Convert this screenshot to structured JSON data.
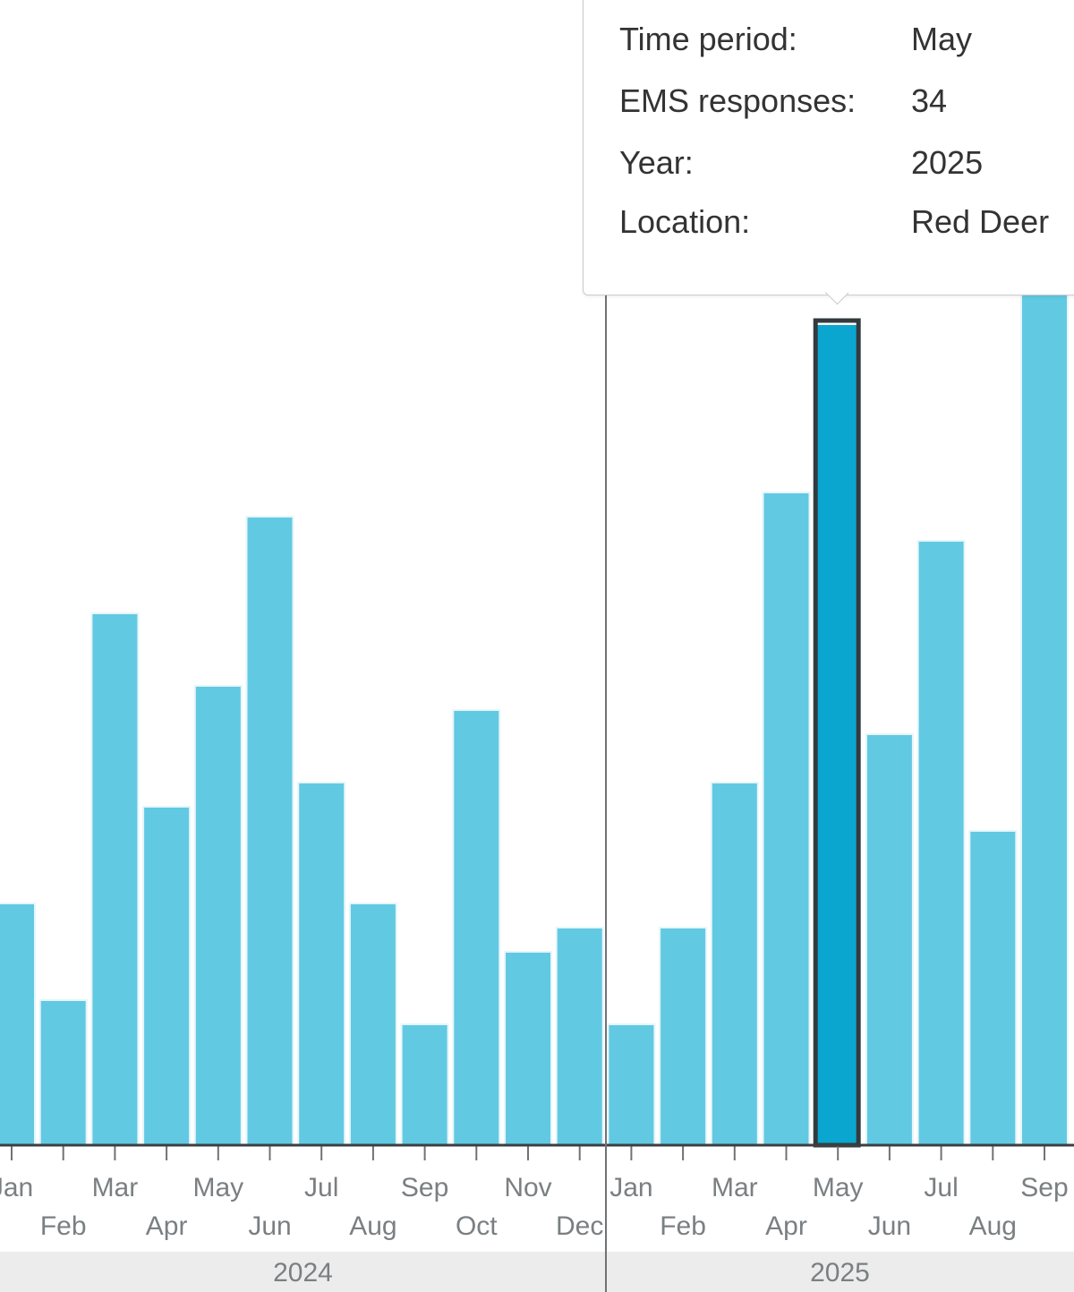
{
  "chart_data": {
    "type": "bar",
    "title": "",
    "xlabel": "",
    "ylabel": "",
    "ylim": [
      0,
      40
    ],
    "grid": false,
    "legend": "none",
    "bar_color": "#62c9e2",
    "selected_bar_color": "#0aa6d0",
    "years": [
      {
        "year": "2024",
        "categories": [
          "Jan",
          "Feb",
          "Mar",
          "Apr",
          "May",
          "Jun",
          "Jul",
          "Aug",
          "Sep",
          "Oct",
          "Nov",
          "Dec"
        ],
        "values": [
          10,
          6,
          22,
          14,
          19,
          26,
          15,
          10,
          5,
          18,
          8,
          9
        ]
      },
      {
        "year": "2025",
        "categories": [
          "Jan",
          "Feb",
          "Mar",
          "Apr",
          "May",
          "Jun",
          "Jul",
          "Aug",
          "Sep"
        ],
        "values": [
          5,
          9,
          15,
          27,
          34,
          17,
          25,
          13,
          36
        ]
      }
    ],
    "selected": {
      "year": "2025",
      "month": "May"
    }
  },
  "tooltip": {
    "rows": [
      {
        "label": "Time period:",
        "value": "May"
      },
      {
        "label": "EMS responses:",
        "value": "34"
      },
      {
        "label": "Year:",
        "value": "2025"
      },
      {
        "label": "Location:",
        "value": "Red Deer"
      }
    ]
  }
}
